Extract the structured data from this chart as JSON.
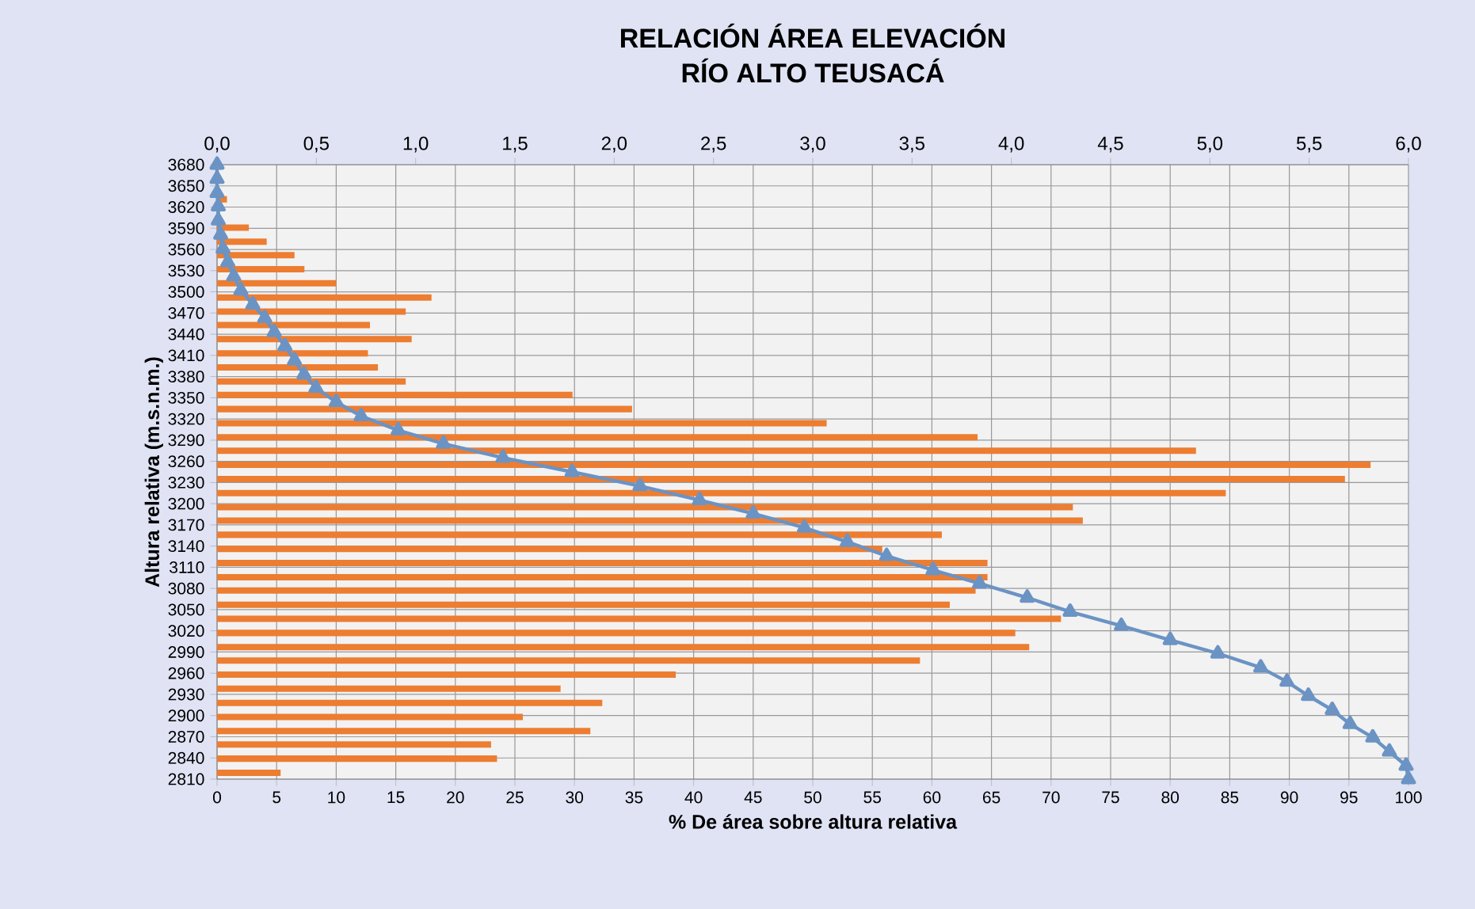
{
  "chart_data": {
    "type": "bar",
    "orientation": "horizontal",
    "title": "RELACIÓN ÁREA ELEVACIÓN",
    "subtitle": "RÍO ALTO TEUSACÁ",
    "xlabel": "% De área sobre altura relativa",
    "ylabel": "Altura relativa (m.s.n.m.)",
    "grid": true,
    "marker": "triangle",
    "xlim": [
      0,
      100
    ],
    "xticks": [
      0,
      5,
      10,
      15,
      20,
      25,
      30,
      35,
      40,
      45,
      50,
      55,
      60,
      65,
      70,
      75,
      80,
      85,
      90,
      95,
      100
    ],
    "x2lim": [
      0,
      6
    ],
    "x2ticks": [
      {
        "value": 0,
        "label": "0,0"
      },
      {
        "value": 0.5,
        "label": "0,5"
      },
      {
        "value": 1,
        "label": "1,0"
      },
      {
        "value": 1.5,
        "label": "1,5"
      },
      {
        "value": 2,
        "label": "2,0"
      },
      {
        "value": 2.5,
        "label": "2,5"
      },
      {
        "value": 3,
        "label": "3,0"
      },
      {
        "value": 3.5,
        "label": "3,5"
      },
      {
        "value": 4,
        "label": "4,0"
      },
      {
        "value": 4.5,
        "label": "4,5"
      },
      {
        "value": 5,
        "label": "5,0"
      },
      {
        "value": 5.5,
        "label": "5,5"
      },
      {
        "value": 6,
        "label": "6,0"
      }
    ],
    "ylim": [
      2810,
      3680
    ],
    "yticks": [
      2810,
      2840,
      2870,
      2900,
      2930,
      2960,
      2990,
      3020,
      3050,
      3080,
      3110,
      3140,
      3170,
      3200,
      3230,
      3260,
      3290,
      3320,
      3350,
      3380,
      3410,
      3440,
      3470,
      3500,
      3530,
      3560,
      3590,
      3620,
      3650,
      3680
    ],
    "series": [
      {
        "axis": "x2",
        "color": "#ed7d31",
        "x": [
          3670,
          3650,
          3631,
          3611,
          3591,
          3571,
          3552,
          3532,
          3512,
          3492,
          3472,
          3453,
          3433,
          3413,
          3393,
          3373,
          3354,
          3334,
          3314,
          3294,
          3275,
          3255,
          3235,
          3215,
          3195,
          3176,
          3156,
          3136,
          3116,
          3096,
          3077,
          3057,
          3037,
          3017,
          2997,
          2978,
          2958,
          2938,
          2918,
          2898,
          2878,
          2859,
          2839,
          2819
        ],
        "values": [
          0,
          null,
          0.05,
          null,
          0.16,
          0.25,
          0.39,
          0.44,
          0.6,
          1.08,
          0.95,
          0.77,
          0.98,
          0.76,
          0.81,
          0.95,
          1.79,
          2.09,
          3.07,
          3.83,
          4.93,
          5.81,
          5.68,
          5.08,
          4.31,
          4.36,
          3.65,
          3.35,
          3.88,
          3.88,
          3.82,
          3.69,
          4.25,
          4.02,
          4.09,
          3.54,
          2.31,
          1.73,
          1.94,
          1.54,
          1.88,
          1.38,
          1.41,
          0.32
        ]
      },
      {
        "type": "line",
        "color": "#6b93c4",
        "x": [
          3680,
          3660,
          3640,
          3621,
          3601,
          3581,
          3561,
          3542,
          3522,
          3502,
          3482,
          3463,
          3443,
          3423,
          3403,
          3383,
          3364,
          3344,
          3324,
          3304,
          3285,
          3265,
          3245,
          3225,
          3205,
          3186,
          3166,
          3146,
          3126,
          3106,
          3087,
          3067,
          3047,
          3027,
          3007,
          2988,
          2968,
          2948,
          2928,
          2908,
          2888,
          2869,
          2849,
          2829,
          2810
        ],
        "values": [
          0,
          0,
          0.0,
          0.1,
          0.1,
          0.3,
          0.5,
          0.9,
          1.4,
          2.0,
          3.0,
          4.0,
          4.8,
          5.7,
          6.5,
          7.3,
          8.3,
          10.0,
          12.1,
          15.2,
          19.0,
          24.0,
          29.8,
          35.5,
          40.5,
          45.0,
          49.3,
          52.9,
          56.2,
          60.1,
          64.0,
          68.0,
          71.6,
          75.9,
          80.0,
          84.0,
          87.6,
          89.8,
          91.6,
          93.6,
          95.1,
          97.0,
          98.4,
          99.8,
          100
        ]
      }
    ]
  }
}
